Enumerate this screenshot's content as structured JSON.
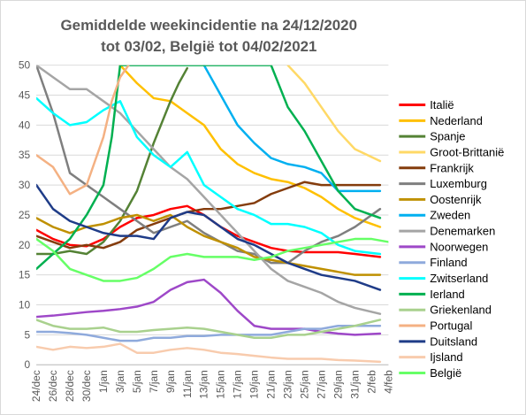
{
  "chart_data": {
    "type": "line",
    "title": "Gemiddelde weekincidentie  na 24/12/2020",
    "subtitle": "tot 03/02, België tot 04/02/2021",
    "xlabel": "",
    "ylabel": "",
    "ylim": [
      0,
      50
    ],
    "yticks": [
      0,
      5,
      10,
      15,
      20,
      25,
      30,
      35,
      40,
      45,
      50
    ],
    "grid": true,
    "legend_position": "right",
    "x_start": "2020-12-24",
    "x_end": "2021-02-04",
    "xtick_labels": [
      "24/dec",
      "26/dec",
      "28/dec",
      "30/dec",
      "1/jan",
      "3/jan",
      "5/jan",
      "7/jan",
      "9/jan",
      "11/jan",
      "13/jan",
      "15/jan",
      "17/jan",
      "19/jan",
      "21/jan",
      "23/jan",
      "25/jan",
      "27/jan",
      "29/jan",
      "31/jan",
      "2/feb",
      "4/feb"
    ],
    "series": [
      {
        "name": "Italië",
        "color": "#ff0000",
        "x": [
          "2020-12-24",
          "2020-12-26",
          "2020-12-28",
          "2020-12-30",
          "2021-01-01",
          "2021-01-03",
          "2021-01-05",
          "2021-01-07",
          "2021-01-09",
          "2021-01-11",
          "2021-01-13",
          "2021-01-15",
          "2021-01-17",
          "2021-01-19",
          "2021-01-21",
          "2021-01-23",
          "2021-01-25",
          "2021-01-27",
          "2021-01-29",
          "2021-01-31",
          "2021-02-03"
        ],
        "values": [
          22.5,
          21,
          20,
          19.8,
          21,
          23,
          24.5,
          25,
          26,
          26.5,
          25,
          23,
          21.5,
          20.5,
          19.5,
          19,
          18.8,
          18.8,
          18.8,
          18.5,
          18
        ]
      },
      {
        "name": "Nederland",
        "color": "#ffc000",
        "x": [
          "2021-01-03",
          "2021-01-05",
          "2021-01-07",
          "2021-01-09",
          "2021-01-11",
          "2021-01-13",
          "2021-01-15",
          "2021-01-17",
          "2021-01-19",
          "2021-01-21",
          "2021-01-23",
          "2021-01-25",
          "2021-01-27",
          "2021-01-29",
          "2021-01-31",
          "2021-02-03"
        ],
        "values": [
          50,
          47,
          44.5,
          44,
          42,
          40,
          36,
          33.5,
          32,
          31,
          30.5,
          29.5,
          28,
          26,
          24.5,
          23
        ]
      },
      {
        "name": "Spanje",
        "color": "#548235",
        "x": [
          "2020-12-24",
          "2020-12-26",
          "2020-12-28",
          "2020-12-30",
          "2021-01-01",
          "2021-01-03",
          "2021-01-05",
          "2021-01-07",
          "2021-01-09",
          "2021-01-10",
          "2021-01-11"
        ],
        "values": [
          18.5,
          18.5,
          19,
          18.5,
          20.5,
          24,
          29,
          37,
          44,
          47,
          49.5
        ]
      },
      {
        "name": "Groot-Brittanië",
        "color": "#ffd966",
        "x": [
          "2021-01-23",
          "2021-01-25",
          "2021-01-27",
          "2021-01-29",
          "2021-01-31",
          "2021-02-03"
        ],
        "values": [
          50,
          47,
          43,
          39,
          36,
          34
        ]
      },
      {
        "name": "Frankrijk",
        "color": "#843c0c",
        "x": [
          "2020-12-24",
          "2020-12-26",
          "2020-12-28",
          "2020-12-30",
          "2021-01-01",
          "2021-01-03",
          "2021-01-05",
          "2021-01-07",
          "2021-01-09",
          "2021-01-11",
          "2021-01-13",
          "2021-01-15",
          "2021-01-17",
          "2021-01-19",
          "2021-01-21",
          "2021-01-23",
          "2021-01-25",
          "2021-01-27",
          "2021-01-29",
          "2021-01-31",
          "2021-02-03"
        ],
        "values": [
          21.5,
          20.5,
          19.5,
          20,
          19.5,
          20.5,
          22.5,
          23.5,
          24.5,
          25.5,
          26,
          26,
          26.5,
          27,
          28.5,
          29.5,
          30.5,
          30,
          30,
          30,
          30
        ]
      },
      {
        "name": "Luxemburg",
        "color": "#7f7f7f",
        "x": [
          "2020-12-24",
          "2020-12-26",
          "2020-12-28",
          "2020-12-30",
          "2021-01-01",
          "2021-01-03",
          "2021-01-05",
          "2021-01-07",
          "2021-01-09",
          "2021-01-11",
          "2021-01-13",
          "2021-01-15",
          "2021-01-17",
          "2021-01-19",
          "2021-01-21",
          "2021-01-23",
          "2021-01-25",
          "2021-01-27",
          "2021-01-29",
          "2021-01-31",
          "2021-02-03"
        ],
        "values": [
          50,
          42,
          32,
          30,
          28,
          26,
          24,
          22,
          23,
          24,
          22,
          20.5,
          19,
          18.5,
          17,
          17,
          19,
          20.5,
          21.5,
          23,
          26
        ]
      },
      {
        "name": "Oostenrijk",
        "color": "#bf9000",
        "x": [
          "2020-12-24",
          "2020-12-26",
          "2020-12-28",
          "2020-12-30",
          "2021-01-01",
          "2021-01-03",
          "2021-01-05",
          "2021-01-07",
          "2021-01-09",
          "2021-01-11",
          "2021-01-13",
          "2021-01-15",
          "2021-01-17",
          "2021-01-19",
          "2021-01-21",
          "2021-01-23",
          "2021-01-25",
          "2021-01-27",
          "2021-01-29",
          "2021-01-31",
          "2021-02-03"
        ],
        "values": [
          24.5,
          23,
          22,
          23,
          23.5,
          24.5,
          25,
          24,
          25,
          23,
          21.5,
          20.5,
          19.5,
          18,
          17.5,
          17,
          16.5,
          16,
          15.5,
          15,
          15
        ]
      },
      {
        "name": "Zweden",
        "color": "#00b0f0",
        "x": [
          "2021-01-13",
          "2021-01-15",
          "2021-01-17",
          "2021-01-19",
          "2021-01-21",
          "2021-01-23",
          "2021-01-25",
          "2021-01-27",
          "2021-01-29",
          "2021-01-31",
          "2021-02-03"
        ],
        "values": [
          50,
          45,
          40,
          37,
          34.5,
          33.5,
          33,
          32,
          29,
          29,
          29
        ]
      },
      {
        "name": "Denemarken",
        "color": "#a5a5a5",
        "x": [
          "2020-12-24",
          "2020-12-26",
          "2020-12-28",
          "2020-12-30",
          "2021-01-01",
          "2021-01-03",
          "2021-01-05",
          "2021-01-07",
          "2021-01-09",
          "2021-01-11",
          "2021-01-13",
          "2021-01-15",
          "2021-01-17",
          "2021-01-19",
          "2021-01-21",
          "2021-01-23",
          "2021-01-25",
          "2021-01-27",
          "2021-01-29",
          "2021-01-31",
          "2021-02-03"
        ],
        "values": [
          50,
          48,
          46,
          46,
          44,
          42,
          39,
          36,
          33,
          31,
          28,
          25,
          22,
          19,
          16,
          14,
          13,
          12,
          10.5,
          9.5,
          8.5
        ]
      },
      {
        "name": "Noorwegen",
        "color": "#9e48c8",
        "x": [
          "2020-12-24",
          "2020-12-26",
          "2020-12-28",
          "2020-12-30",
          "2021-01-01",
          "2021-01-03",
          "2021-01-05",
          "2021-01-07",
          "2021-01-09",
          "2021-01-11",
          "2021-01-13",
          "2021-01-15",
          "2021-01-17",
          "2021-01-19",
          "2021-01-21",
          "2021-01-23",
          "2021-01-25",
          "2021-01-27",
          "2021-01-29",
          "2021-01-31",
          "2021-02-03"
        ],
        "values": [
          8,
          8.2,
          8.5,
          8.8,
          9,
          9.3,
          9.7,
          10.5,
          12.5,
          13.8,
          14.2,
          12,
          9,
          6.5,
          6,
          6,
          6,
          5.5,
          5.2,
          5,
          5.2
        ]
      },
      {
        "name": "Finland",
        "color": "#8faadc",
        "x": [
          "2020-12-24",
          "2020-12-26",
          "2020-12-28",
          "2020-12-30",
          "2021-01-01",
          "2021-01-03",
          "2021-01-05",
          "2021-01-07",
          "2021-01-09",
          "2021-01-11",
          "2021-01-13",
          "2021-01-15",
          "2021-01-17",
          "2021-01-19",
          "2021-01-21",
          "2021-01-23",
          "2021-01-25",
          "2021-01-27",
          "2021-01-29",
          "2021-01-31",
          "2021-02-03"
        ],
        "values": [
          5.5,
          5.5,
          5.3,
          5,
          4.5,
          4,
          4,
          4.5,
          4.5,
          4.8,
          4.8,
          5,
          5,
          5,
          5,
          5.5,
          6,
          6,
          6.5,
          6.5,
          6.5
        ]
      },
      {
        "name": "Zwitserland",
        "color": "#00ffff",
        "x": [
          "2020-12-24",
          "2020-12-26",
          "2020-12-28",
          "2020-12-30",
          "2021-01-01",
          "2021-01-03",
          "2021-01-05",
          "2021-01-07",
          "2021-01-09",
          "2021-01-11",
          "2021-01-13",
          "2021-01-15",
          "2021-01-17",
          "2021-01-19",
          "2021-01-21",
          "2021-01-23",
          "2021-01-25",
          "2021-01-27",
          "2021-01-29",
          "2021-01-31",
          "2021-02-03"
        ],
        "values": [
          44.5,
          42,
          40,
          40.5,
          42.5,
          44,
          38,
          35,
          33,
          35.5,
          30,
          28,
          26,
          25,
          23.5,
          23.5,
          23,
          22,
          20,
          19,
          18.5
        ]
      },
      {
        "name": "Ierland",
        "color": "#00b050",
        "x": [
          "2020-12-24",
          "2020-12-26",
          "2020-12-28",
          "2020-12-30",
          "2021-01-01",
          "2021-01-02",
          "2021-01-03",
          "2021-01-21",
          "2021-01-23",
          "2021-01-25",
          "2021-01-27",
          "2021-01-29",
          "2021-01-31",
          "2021-02-03"
        ],
        "values": [
          16,
          18.5,
          21,
          25,
          30,
          38,
          50,
          50,
          43,
          39,
          34,
          29,
          26,
          24.5
        ]
      },
      {
        "name": "Griekenland",
        "color": "#a9d18e",
        "x": [
          "2020-12-24",
          "2020-12-26",
          "2020-12-28",
          "2020-12-30",
          "2021-01-01",
          "2021-01-03",
          "2021-01-05",
          "2021-01-07",
          "2021-01-09",
          "2021-01-11",
          "2021-01-13",
          "2021-01-15",
          "2021-01-17",
          "2021-01-19",
          "2021-01-21",
          "2021-01-23",
          "2021-01-25",
          "2021-01-27",
          "2021-01-29",
          "2021-01-31",
          "2021-02-03"
        ],
        "values": [
          7.5,
          6.5,
          6,
          6,
          6.2,
          5.5,
          5.5,
          5.8,
          6,
          6.2,
          6,
          5.5,
          5,
          4.5,
          4.5,
          5,
          5,
          5.5,
          6,
          6.5,
          7.5
        ]
      },
      {
        "name": "Portugal",
        "color": "#f4b183",
        "x": [
          "2020-12-24",
          "2020-12-26",
          "2020-12-28",
          "2020-12-30",
          "2021-01-01",
          "2021-01-02",
          "2021-01-03",
          "2021-01-04"
        ],
        "values": [
          35,
          33,
          28.5,
          30,
          38,
          44,
          48,
          50
        ]
      },
      {
        "name": "Duitsland",
        "color": "#1f3c88",
        "x": [
          "2020-12-24",
          "2020-12-26",
          "2020-12-28",
          "2020-12-30",
          "2021-01-01",
          "2021-01-03",
          "2021-01-05",
          "2021-01-07",
          "2021-01-09",
          "2021-01-11",
          "2021-01-13",
          "2021-01-15",
          "2021-01-17",
          "2021-01-19",
          "2021-01-21",
          "2021-01-23",
          "2021-01-25",
          "2021-01-27",
          "2021-01-29",
          "2021-01-31",
          "2021-02-03"
        ],
        "values": [
          30,
          26,
          24,
          23,
          22,
          21.5,
          21.5,
          21,
          24.5,
          25.5,
          25,
          23,
          21,
          20,
          18.5,
          17,
          16,
          15,
          14.5,
          14,
          12.5
        ]
      },
      {
        "name": "Ijsland",
        "color": "#f8cbad",
        "x": [
          "2020-12-24",
          "2020-12-26",
          "2020-12-28",
          "2020-12-30",
          "2021-01-01",
          "2021-01-03",
          "2021-01-05",
          "2021-01-07",
          "2021-01-09",
          "2021-01-11",
          "2021-01-13",
          "2021-01-15",
          "2021-01-17",
          "2021-01-19",
          "2021-01-21",
          "2021-01-23",
          "2021-01-25",
          "2021-01-27",
          "2021-01-29",
          "2021-01-31",
          "2021-02-03"
        ],
        "values": [
          3,
          2.5,
          3,
          2.8,
          3,
          3.5,
          2,
          2,
          2.5,
          2.8,
          2.5,
          2,
          1.8,
          1.5,
          1.2,
          1,
          1,
          1,
          0.8,
          0.7,
          0.5
        ]
      },
      {
        "name": "België",
        "color": "#66ff66",
        "x": [
          "2020-12-24",
          "2020-12-26",
          "2020-12-28",
          "2020-12-30",
          "2021-01-01",
          "2021-01-03",
          "2021-01-05",
          "2021-01-07",
          "2021-01-09",
          "2021-01-11",
          "2021-01-13",
          "2021-01-15",
          "2021-01-17",
          "2021-01-19",
          "2021-01-21",
          "2021-01-23",
          "2021-01-25",
          "2021-01-27",
          "2021-01-29",
          "2021-01-31",
          "2021-02-02",
          "2021-02-04"
        ],
        "values": [
          21,
          19,
          16,
          15,
          14,
          14,
          14.5,
          16,
          18,
          18.5,
          18,
          18,
          18,
          17.5,
          18,
          19,
          19.5,
          20,
          20.5,
          21,
          21,
          20.5
        ]
      }
    ]
  }
}
